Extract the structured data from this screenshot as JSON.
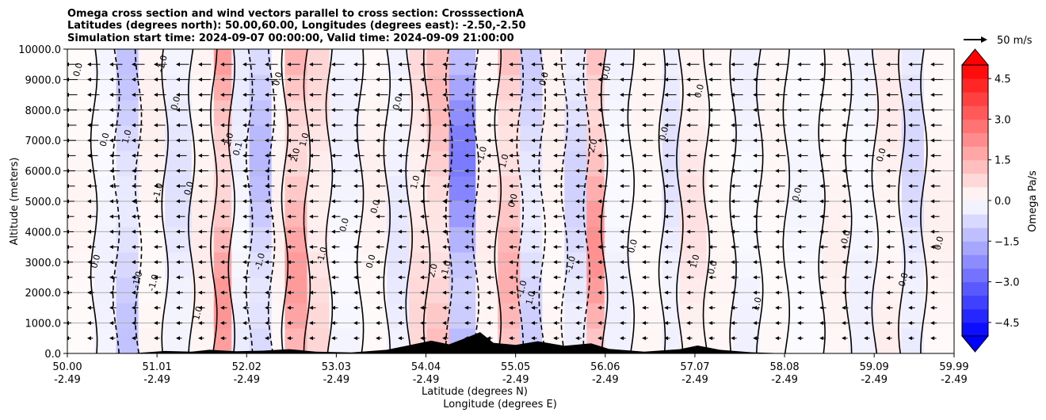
{
  "chart_data": {
    "type": "heatmap",
    "title_lines": [
      "Omega cross section and wind vectors parallel to cross section: CrosssectionA",
      "Latitudes (degrees north): 50.00,60.00, Longitudes (degrees east): -2.50,-2.50",
      "Simulation start time: 2024-09-07 00:00:00, Valid time: 2024-09-09 21:00:00"
    ],
    "xlabel": "Latitude (degrees N)",
    "xlabel2": "Longitude (degrees E)",
    "ylabel": "Altitude (meters)",
    "x_ticks": [
      {
        "lat": 50.0,
        "lat_label": "50.00",
        "lon_label": "-2.49"
      },
      {
        "lat": 51.01,
        "lat_label": "51.01",
        "lon_label": "-2.49"
      },
      {
        "lat": 52.02,
        "lat_label": "52.02",
        "lon_label": "-2.49"
      },
      {
        "lat": 53.03,
        "lat_label": "53.03",
        "lon_label": "-2.49"
      },
      {
        "lat": 54.04,
        "lat_label": "54.04",
        "lon_label": "-2.49"
      },
      {
        "lat": 55.05,
        "lat_label": "55.05",
        "lon_label": "-2.49"
      },
      {
        "lat": 56.06,
        "lat_label": "56.06",
        "lon_label": "-2.49"
      },
      {
        "lat": 57.07,
        "lat_label": "57.07",
        "lon_label": "-2.49"
      },
      {
        "lat": 58.08,
        "lat_label": "58.08",
        "lon_label": "-2.49"
      },
      {
        "lat": 59.09,
        "lat_label": "59.09",
        "lon_label": "-2.49"
      },
      {
        "lat": 59.99,
        "lat_label": "59.99",
        "lon_label": "-2.49"
      }
    ],
    "y_ticks": [
      {
        "value": 0,
        "label": "0.0"
      },
      {
        "value": 1000,
        "label": "1000.0"
      },
      {
        "value": 2000,
        "label": "2000.0"
      },
      {
        "value": 3000,
        "label": "3000.0"
      },
      {
        "value": 4000,
        "label": "4000.0"
      },
      {
        "value": 5000,
        "label": "5000.0"
      },
      {
        "value": 6000,
        "label": "6000.0"
      },
      {
        "value": 7000,
        "label": "7000.0"
      },
      {
        "value": 8000,
        "label": "8000.0"
      },
      {
        "value": 9000,
        "label": "9000.0"
      },
      {
        "value": 10000,
        "label": "10000.0"
      }
    ],
    "xlim": [
      50.0,
      59.99
    ],
    "ylim": [
      0,
      10000
    ],
    "grid": true,
    "colorbar": {
      "label": "Omega Pa/s",
      "range": [
        -5.0,
        5.0
      ],
      "ticks": [
        {
          "value": 4.5,
          "label": "4.5"
        },
        {
          "value": 3.0,
          "label": "3.0"
        },
        {
          "value": 1.5,
          "label": "1.5"
        },
        {
          "value": 0.0,
          "label": "0.0"
        },
        {
          "value": -1.5,
          "label": "−1.5"
        },
        {
          "value": -3.0,
          "label": "−3.0"
        },
        {
          "value": -4.5,
          "label": "−4.5"
        }
      ],
      "extend": "both",
      "cmap": "bwr"
    },
    "quiver_key": {
      "label": "50 m/s"
    },
    "omega_bands": [
      {
        "lat_from": 50.0,
        "lat_to": 50.3,
        "omega": 0.2
      },
      {
        "lat_from": 50.3,
        "lat_to": 50.55,
        "omega": -0.3
      },
      {
        "lat_from": 50.55,
        "lat_to": 50.8,
        "omega": -1.2
      },
      {
        "lat_from": 50.8,
        "lat_to": 51.1,
        "omega": 0.3
      },
      {
        "lat_from": 51.1,
        "lat_to": 51.4,
        "omega": -0.6
      },
      {
        "lat_from": 51.4,
        "lat_to": 51.65,
        "omega": 0.4
      },
      {
        "lat_from": 51.65,
        "lat_to": 51.85,
        "omega": 2.1
      },
      {
        "lat_from": 51.85,
        "lat_to": 52.05,
        "omega": -0.4
      },
      {
        "lat_from": 52.05,
        "lat_to": 52.3,
        "omega": -1.4
      },
      {
        "lat_from": 52.3,
        "lat_to": 52.45,
        "omega": 0.3
      },
      {
        "lat_from": 52.45,
        "lat_to": 52.7,
        "omega": 2.0
      },
      {
        "lat_from": 52.7,
        "lat_to": 52.95,
        "omega": 0.8
      },
      {
        "lat_from": 52.95,
        "lat_to": 53.3,
        "omega": -0.3
      },
      {
        "lat_from": 53.3,
        "lat_to": 53.6,
        "omega": 0.3
      },
      {
        "lat_from": 53.6,
        "lat_to": 53.85,
        "omega": -0.5
      },
      {
        "lat_from": 53.85,
        "lat_to": 54.05,
        "omega": 0.8
      },
      {
        "lat_from": 54.05,
        "lat_to": 54.3,
        "omega": 1.4
      },
      {
        "lat_from": 54.3,
        "lat_to": 54.6,
        "omega": -2.6
      },
      {
        "lat_from": 54.6,
        "lat_to": 54.85,
        "omega": 0.4
      },
      {
        "lat_from": 54.85,
        "lat_to": 55.1,
        "omega": 1.6
      },
      {
        "lat_from": 55.1,
        "lat_to": 55.35,
        "omega": -1.0
      },
      {
        "lat_from": 55.35,
        "lat_to": 55.6,
        "omega": 0.3
      },
      {
        "lat_from": 55.6,
        "lat_to": 55.85,
        "omega": -0.9
      },
      {
        "lat_from": 55.85,
        "lat_to": 56.05,
        "omega": 2.2
      },
      {
        "lat_from": 56.05,
        "lat_to": 56.35,
        "omega": -0.3
      },
      {
        "lat_from": 56.35,
        "lat_to": 56.7,
        "omega": 0.2
      },
      {
        "lat_from": 56.7,
        "lat_to": 56.9,
        "omega": -0.6
      },
      {
        "lat_from": 56.9,
        "lat_to": 57.2,
        "omega": 0.6
      },
      {
        "lat_from": 57.2,
        "lat_to": 57.5,
        "omega": 0.2
      },
      {
        "lat_from": 57.5,
        "lat_to": 57.8,
        "omega": -0.3
      },
      {
        "lat_from": 57.8,
        "lat_to": 58.1,
        "omega": 0.2
      },
      {
        "lat_from": 58.1,
        "lat_to": 58.5,
        "omega": -0.2
      },
      {
        "lat_from": 58.5,
        "lat_to": 58.8,
        "omega": 0.3
      },
      {
        "lat_from": 58.8,
        "lat_to": 59.1,
        "omega": -0.3
      },
      {
        "lat_from": 59.1,
        "lat_to": 59.4,
        "omega": 0.4
      },
      {
        "lat_from": 59.4,
        "lat_to": 59.65,
        "omega": -0.8
      },
      {
        "lat_from": 59.65,
        "lat_to": 59.99,
        "omega": 0.3
      }
    ],
    "contour_labels": [
      {
        "lat": 50.15,
        "alt": 9300,
        "text": "0.0"
      },
      {
        "lat": 50.35,
        "alt": 3000,
        "text": "0.0"
      },
      {
        "lat": 50.45,
        "alt": 7000,
        "text": "0.0"
      },
      {
        "lat": 50.7,
        "alt": 7100,
        "text": "1.0"
      },
      {
        "lat": 50.82,
        "alt": 2400,
        "text": "-1.0"
      },
      {
        "lat": 51.0,
        "alt": 2300,
        "text": "-1.0"
      },
      {
        "lat": 51.05,
        "alt": 5300,
        "text": "-1.0"
      },
      {
        "lat": 51.1,
        "alt": 9500,
        "text": "-1.0"
      },
      {
        "lat": 51.25,
        "alt": 8200,
        "text": "0.0"
      },
      {
        "lat": 51.4,
        "alt": 5400,
        "text": "0.0"
      },
      {
        "lat": 51.5,
        "alt": 1300,
        "text": "1.0"
      },
      {
        "lat": 51.85,
        "alt": 7000,
        "text": "2.0"
      },
      {
        "lat": 51.95,
        "alt": 6700,
        "text": "0.1"
      },
      {
        "lat": 52.2,
        "alt": 3000,
        "text": "-1.0"
      },
      {
        "lat": 52.4,
        "alt": 9000,
        "text": "0.0"
      },
      {
        "lat": 52.6,
        "alt": 6500,
        "text": "2.0"
      },
      {
        "lat": 52.7,
        "alt": 7000,
        "text": "1.0"
      },
      {
        "lat": 52.9,
        "alt": 3200,
        "text": "-1.0"
      },
      {
        "lat": 53.15,
        "alt": 4200,
        "text": "0.0"
      },
      {
        "lat": 53.45,
        "alt": 3000,
        "text": "0.0"
      },
      {
        "lat": 53.5,
        "alt": 4800,
        "text": "0.0"
      },
      {
        "lat": 53.75,
        "alt": 8200,
        "text": "0.0"
      },
      {
        "lat": 53.95,
        "alt": 5600,
        "text": "1.0"
      },
      {
        "lat": 54.15,
        "alt": 2700,
        "text": "2.0"
      },
      {
        "lat": 54.3,
        "alt": 2800,
        "text": "1.0"
      },
      {
        "lat": 54.7,
        "alt": 6500,
        "text": "-1.0"
      },
      {
        "lat": 54.95,
        "alt": 6300,
        "text": "1.0"
      },
      {
        "lat": 55.05,
        "alt": 5000,
        "text": "0.0"
      },
      {
        "lat": 55.15,
        "alt": 2100,
        "text": "-1.0"
      },
      {
        "lat": 55.25,
        "alt": 1800,
        "text": "1.0"
      },
      {
        "lat": 55.4,
        "alt": 9000,
        "text": "0.0"
      },
      {
        "lat": 55.7,
        "alt": 2900,
        "text": "-1.0"
      },
      {
        "lat": 55.95,
        "alt": 6800,
        "text": "2.0"
      },
      {
        "lat": 56.1,
        "alt": 9200,
        "text": "0.0"
      },
      {
        "lat": 56.4,
        "alt": 3500,
        "text": "0.0"
      },
      {
        "lat": 56.75,
        "alt": 7200,
        "text": "0.0"
      },
      {
        "lat": 57.1,
        "alt": 3000,
        "text": "1.0"
      },
      {
        "lat": 57.15,
        "alt": 8600,
        "text": "0.0"
      },
      {
        "lat": 57.3,
        "alt": 2800,
        "text": "0.0"
      },
      {
        "lat": 57.8,
        "alt": 1600,
        "text": "1.0"
      },
      {
        "lat": 58.25,
        "alt": 5200,
        "text": "0.0"
      },
      {
        "lat": 58.8,
        "alt": 3800,
        "text": "0.0"
      },
      {
        "lat": 59.2,
        "alt": 6500,
        "text": "0.0"
      },
      {
        "lat": 59.45,
        "alt": 2400,
        "text": "0.0"
      },
      {
        "lat": 59.85,
        "alt": 3600,
        "text": "0.0"
      }
    ],
    "terrain": [
      {
        "lat": 50.0,
        "alt": 0
      },
      {
        "lat": 50.7,
        "alt": 0
      },
      {
        "lat": 50.9,
        "alt": 40
      },
      {
        "lat": 51.1,
        "alt": 80
      },
      {
        "lat": 51.4,
        "alt": 60
      },
      {
        "lat": 51.6,
        "alt": 120
      },
      {
        "lat": 51.9,
        "alt": 70
      },
      {
        "lat": 52.2,
        "alt": 90
      },
      {
        "lat": 52.5,
        "alt": 140
      },
      {
        "lat": 52.8,
        "alt": 60
      },
      {
        "lat": 53.2,
        "alt": 30
      },
      {
        "lat": 53.6,
        "alt": 120
      },
      {
        "lat": 53.9,
        "alt": 300
      },
      {
        "lat": 54.1,
        "alt": 420
      },
      {
        "lat": 54.3,
        "alt": 300
      },
      {
        "lat": 54.5,
        "alt": 520
      },
      {
        "lat": 54.65,
        "alt": 700
      },
      {
        "lat": 54.8,
        "alt": 350
      },
      {
        "lat": 55.05,
        "alt": 280
      },
      {
        "lat": 55.3,
        "alt": 400
      },
      {
        "lat": 55.6,
        "alt": 250
      },
      {
        "lat": 55.9,
        "alt": 330
      },
      {
        "lat": 56.1,
        "alt": 150
      },
      {
        "lat": 56.5,
        "alt": 60
      },
      {
        "lat": 56.9,
        "alt": 140
      },
      {
        "lat": 57.1,
        "alt": 260
      },
      {
        "lat": 57.35,
        "alt": 120
      },
      {
        "lat": 57.7,
        "alt": 40
      },
      {
        "lat": 58.1,
        "alt": 0
      },
      {
        "lat": 59.99,
        "alt": 0
      }
    ]
  }
}
